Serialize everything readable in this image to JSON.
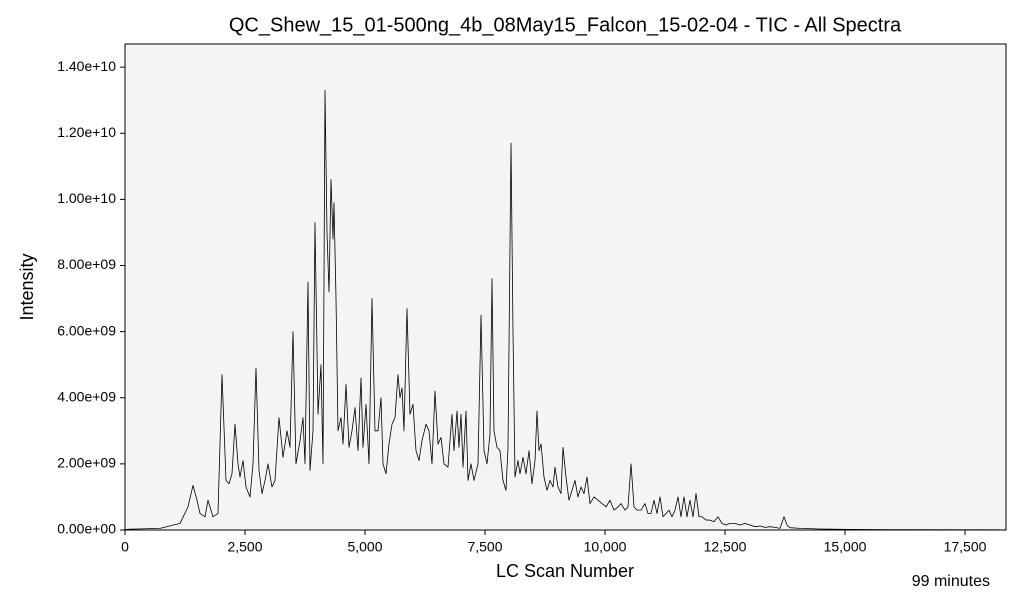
{
  "chart_data": {
    "type": "line",
    "title": "QC_Shew_15_01-500ng_4b_08May15_Falcon_15-02-04 - TIC - All Spectra",
    "x_label": "LC Scan Number",
    "y_label": "Intensity",
    "annotation": "99 minutes",
    "color": "#000000",
    "xlim": [
      0,
      18354
    ],
    "ylim": [
      0,
      14700000000.0
    ],
    "xticks": [
      0,
      {
        "value": 2500,
        "label": "2,500"
      },
      {
        "value": 5000,
        "label": "5,000"
      },
      {
        "value": 7500,
        "label": "7,500"
      },
      {
        "value": 10000,
        "label": "10,000"
      },
      {
        "value": 12500,
        "label": "12,500"
      },
      {
        "value": 15000,
        "label": "15,000"
      },
      {
        "value": 17500,
        "label": "17,500"
      }
    ],
    "yticks": [
      {
        "value": 0,
        "label": "0.00e+00"
      },
      {
        "value": 2000000000.0,
        "label": "2.00e+09"
      },
      {
        "value": 4000000000.0,
        "label": "4.00e+09"
      },
      {
        "value": 6000000000.0,
        "label": "6.00e+09"
      },
      {
        "value": 8000000000.0,
        "label": "8.00e+09"
      },
      {
        "value": 10000000000.0,
        "label": "1.00e+10"
      },
      {
        "value": 12000000000.0,
        "label": "1.20e+10"
      },
      {
        "value": 14000000000.0,
        "label": "1.40e+10"
      }
    ],
    "x": [
      0,
      729,
      1146,
      1312,
      1417,
      1500,
      1562,
      1667,
      1729,
      1833,
      1937,
      2021,
      2104,
      2167,
      2229,
      2292,
      2354,
      2396,
      2458,
      2521,
      2604,
      2667,
      2729,
      2792,
      2854,
      2917,
      2979,
      3062,
      3125,
      3208,
      3292,
      3375,
      3437,
      3500,
      3562,
      3646,
      3708,
      3750,
      3812,
      3854,
      3917,
      3958,
      4021,
      4083,
      4125,
      4167,
      4208,
      4250,
      4292,
      4333,
      4354,
      4396,
      4437,
      4500,
      4542,
      4604,
      4667,
      4729,
      4792,
      4854,
      4917,
      4958,
      5021,
      5083,
      5146,
      5208,
      5271,
      5333,
      5375,
      5437,
      5500,
      5562,
      5625,
      5687,
      5729,
      5771,
      5812,
      5875,
      5937,
      6000,
      6062,
      6125,
      6187,
      6271,
      6333,
      6396,
      6458,
      6521,
      6583,
      6646,
      6729,
      6812,
      6854,
      6917,
      6958,
      7000,
      7042,
      7104,
      7146,
      7208,
      7271,
      7354,
      7417,
      7479,
      7542,
      7604,
      7646,
      7687,
      7750,
      7812,
      7875,
      7937,
      7979,
      8042,
      8083,
      8125,
      8187,
      8229,
      8292,
      8354,
      8417,
      8479,
      8542,
      8583,
      8625,
      8667,
      8729,
      8792,
      8854,
      8917,
      8958,
      9021,
      9083,
      9125,
      9187,
      9250,
      9312,
      9375,
      9437,
      9500,
      9562,
      9625,
      9687,
      9771,
      9854,
      9937,
      10021,
      10104,
      10187,
      10271,
      10333,
      10417,
      10479,
      10542,
      10604,
      10667,
      10750,
      10833,
      10896,
      10958,
      11021,
      11083,
      11146,
      11208,
      11271,
      11333,
      11396,
      11458,
      11521,
      11583,
      11646,
      11708,
      11771,
      11833,
      11896,
      11958,
      12021,
      12104,
      12187,
      12271,
      12354,
      12437,
      12521,
      12604,
      12708,
      12812,
      12917,
      13021,
      13125,
      13229,
      13333,
      13437,
      13542,
      13646,
      13729,
      13792,
      13854,
      14062,
      14479,
      15104,
      16146,
      18229
    ],
    "values": [
      20000000.0,
      50000000.0,
      200000000.0,
      700000000.0,
      1350000000.0,
      900000000.0,
      500000000.0,
      400000000.0,
      900000000.0,
      400000000.0,
      500000000.0,
      4700000000.0,
      1500000000.0,
      1400000000.0,
      1700000000.0,
      3200000000.0,
      2000000000.0,
      1600000000.0,
      2100000000.0,
      1300000000.0,
      1000000000.0,
      2000000000.0,
      4900000000.0,
      1800000000.0,
      1100000000.0,
      1500000000.0,
      2000000000.0,
      1300000000.0,
      1500000000.0,
      3400000000.0,
      2200000000.0,
      3000000000.0,
      2500000000.0,
      6000000000.0,
      2000000000.0,
      2700000000.0,
      3400000000.0,
      2000000000.0,
      7500000000.0,
      1800000000.0,
      3000000000.0,
      9300000000.0,
      3500000000.0,
      5000000000.0,
      2000000000.0,
      13300000000.0,
      9000000000.0,
      7200000000.0,
      10600000000.0,
      8800000000.0,
      9900000000.0,
      7000000000.0,
      3000000000.0,
      3400000000.0,
      2600000000.0,
      4400000000.0,
      2500000000.0,
      3000000000.0,
      3700000000.0,
      2400000000.0,
      4600000000.0,
      2500000000.0,
      3800000000.0,
      2000000000.0,
      7000000000.0,
      3000000000.0,
      3000000000.0,
      4000000000.0,
      2000000000.0,
      1700000000.0,
      2600000000.0,
      3200000000.0,
      3400000000.0,
      4700000000.0,
      4000000000.0,
      4300000000.0,
      3000000000.0,
      6700000000.0,
      3500000000.0,
      3800000000.0,
      2400000000.0,
      2100000000.0,
      2700000000.0,
      3200000000.0,
      3000000000.0,
      2000000000.0,
      4200000000.0,
      2600000000.0,
      2800000000.0,
      2000000000.0,
      1900000000.0,
      3500000000.0,
      2400000000.0,
      3600000000.0,
      2500000000.0,
      3500000000.0,
      1900000000.0,
      3600000000.0,
      1500000000.0,
      2000000000.0,
      1500000000.0,
      2000000000.0,
      6500000000.0,
      2400000000.0,
      2000000000.0,
      2900000000.0,
      7600000000.0,
      3000000000.0,
      2500000000.0,
      2400000000.0,
      1500000000.0,
      1200000000.0,
      2500000000.0,
      11700000000.0,
      6000000000.0,
      1600000000.0,
      2100000000.0,
      1700000000.0,
      2200000000.0,
      1700000000.0,
      2400000000.0,
      1400000000.0,
      2100000000.0,
      3600000000.0,
      2400000000.0,
      2600000000.0,
      1600000000.0,
      1200000000.0,
      1500000000.0,
      1300000000.0,
      1900000000.0,
      1300000000.0,
      1100000000.0,
      2500000000.0,
      1600000000.0,
      900000000.0,
      1200000000.0,
      1500000000.0,
      1000000000.0,
      1300000000.0,
      1100000000.0,
      1600000000.0,
      800000000.0,
      1000000000.0,
      900000000.0,
      800000000.0,
      700000000.0,
      900000000.0,
      600000000.0,
      700000000.0,
      800000000.0,
      600000000.0,
      700000000.0,
      2000000000.0,
      700000000.0,
      600000000.0,
      600000000.0,
      800000000.0,
      500000000.0,
      500000000.0,
      900000000.0,
      500000000.0,
      1000000000.0,
      400000000.0,
      500000000.0,
      600000000.0,
      400000000.0,
      600000000.0,
      1000000000.0,
      400000000.0,
      1000000000.0,
      400000000.0,
      900000000.0,
      400000000.0,
      1100000000.0,
      400000000.0,
      400000000.0,
      300000000.0,
      300000000.0,
      250000000.0,
      400000000.0,
      200000000.0,
      150000000.0,
      200000000.0,
      200000000.0,
      150000000.0,
      200000000.0,
      150000000.0,
      100000000.0,
      120000000.0,
      80000000.0,
      100000000.0,
      80000000.0,
      50000000.0,
      400000000.0,
      150000000.0,
      70000000.0,
      50000000.0,
      30000000.0,
      20000000.0,
      10000000.0,
      5000000.0
    ]
  }
}
